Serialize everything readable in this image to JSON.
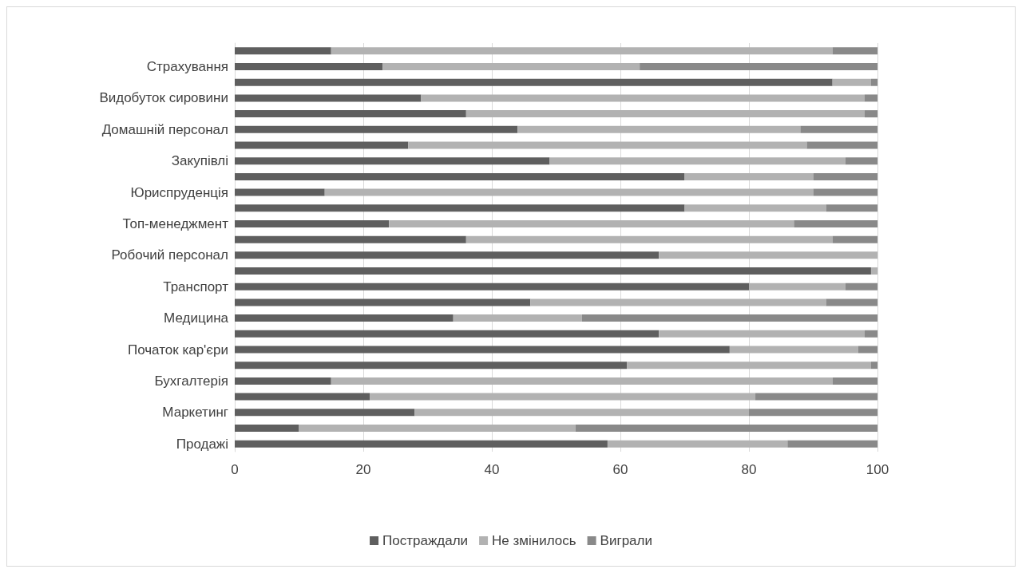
{
  "chart_data": {
    "type": "bar",
    "orientation": "horizontal",
    "stacked": true,
    "categories": [
      null,
      "Страхування",
      null,
      "Видобуток сировини",
      null,
      "Домашній персонал",
      null,
      "Закупівлі",
      null,
      "Юриспруденція",
      null,
      "Топ-менеджмент",
      null,
      "Робочий персонал",
      null,
      "Транспорт",
      null,
      "Медицина",
      null,
      "Початок кар'єри",
      null,
      "Бухгалтерія",
      null,
      "Маркетинг",
      null,
      "Продажі"
    ],
    "series": [
      {
        "name": "Постраждали",
        "color": "#5f5f5f",
        "values": [
          15,
          23,
          93,
          29,
          36,
          44,
          27,
          49,
          70,
          14,
          70,
          24,
          36,
          66,
          99,
          80,
          46,
          34,
          66,
          77,
          61,
          15,
          21,
          28,
          10,
          58
        ]
      },
      {
        "name": "Не змінилось",
        "color": "#b2b2b2",
        "values": [
          78,
          40,
          6,
          69,
          62,
          44,
          62,
          46,
          20,
          76,
          22,
          63,
          57,
          34,
          1,
          15,
          46,
          20,
          32,
          20,
          38,
          78,
          60,
          52,
          43,
          28
        ]
      },
      {
        "name": "Виграли",
        "color": "#898989",
        "values": [
          7,
          37,
          1,
          2,
          2,
          12,
          11,
          5,
          10,
          10,
          8,
          13,
          7,
          0,
          0,
          5,
          8,
          46,
          2,
          3,
          1,
          7,
          19,
          20,
          47,
          14
        ]
      }
    ],
    "xlim": [
      0,
      100
    ],
    "xticks": [
      0,
      20,
      40,
      60,
      80,
      100
    ],
    "grid": "x",
    "legend": "bottom"
  }
}
